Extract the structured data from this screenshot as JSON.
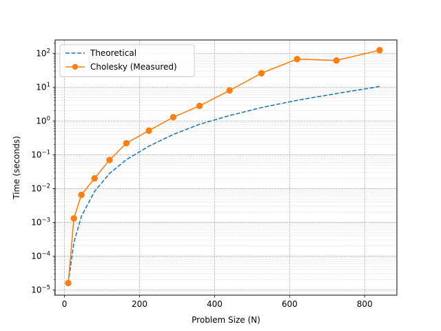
{
  "chart_data": {
    "type": "line",
    "title": "",
    "xlabel": "Problem Size (N)",
    "ylabel": "Time (seconds)",
    "xlim": [
      -25,
      886
    ],
    "ylim": [
      7e-06,
      250
    ],
    "yscale": "log",
    "grid": "both-major-minor",
    "legend_position": "top-left",
    "x_ticks": [
      0,
      200,
      400,
      600,
      800
    ],
    "x_tick_labels": [
      "0",
      "200",
      "400",
      "600",
      "800"
    ],
    "y_ticks": [
      1e-05,
      0.0001,
      0.001,
      0.01,
      0.1,
      1,
      10,
      100
    ],
    "y_tick_labels": [
      {
        "base": "10",
        "exp": "−5"
      },
      {
        "base": "10",
        "exp": "−4"
      },
      {
        "base": "10",
        "exp": "−3"
      },
      {
        "base": "10",
        "exp": "−2"
      },
      {
        "base": "10",
        "exp": "−1"
      },
      {
        "base": "10",
        "exp": "0"
      },
      {
        "base": "10",
        "exp": "1"
      },
      {
        "base": "10",
        "exp": "2"
      }
    ],
    "series": [
      {
        "name": "Theoretical",
        "style": "dashed",
        "color": "#1f77b4",
        "x": [
          10,
          25,
          45,
          80,
          120,
          165,
          225,
          290,
          360,
          440,
          525,
          620,
          725,
          840
        ],
        "y": [
          1.6e-05,
          0.00025,
          0.0015,
          0.0082,
          0.028,
          0.072,
          0.18,
          0.4,
          0.8,
          1.45,
          2.5,
          4.1,
          6.5,
          10.5
        ]
      },
      {
        "name": "Cholesky (Measured)",
        "style": "solid-marker",
        "color": "#ff7f0e",
        "x": [
          10,
          25,
          45,
          80,
          120,
          165,
          225,
          290,
          360,
          440,
          525,
          620,
          725,
          840
        ],
        "y": [
          1.6e-05,
          0.0013,
          0.0065,
          0.02,
          0.07,
          0.22,
          0.52,
          1.3,
          2.8,
          8.0,
          26,
          68,
          62,
          125
        ]
      }
    ]
  }
}
